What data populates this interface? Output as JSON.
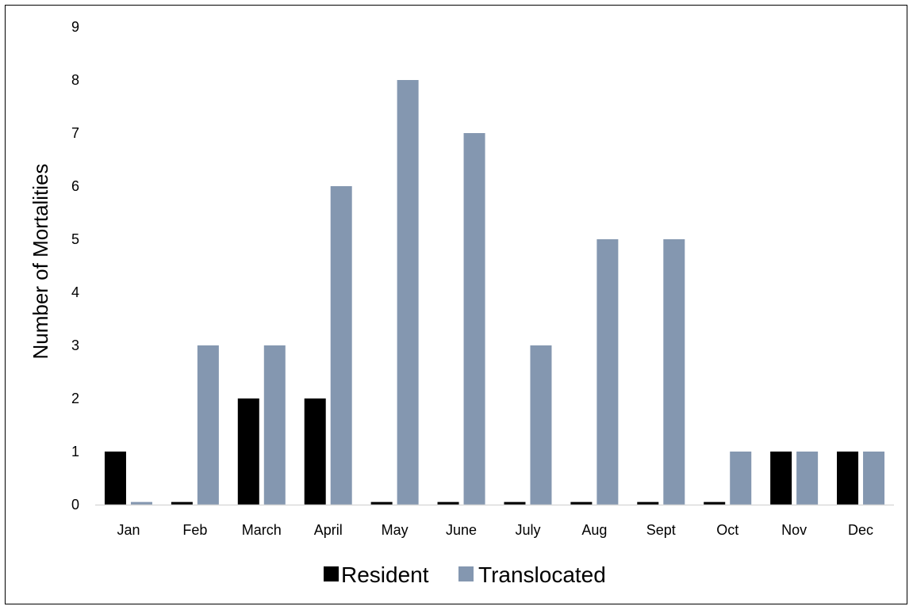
{
  "chart_data": {
    "type": "bar",
    "categories": [
      "Jan",
      "Feb",
      "March",
      "April",
      "May",
      "June",
      "July",
      "Aug",
      "Sept",
      "Oct",
      "Nov",
      "Dec"
    ],
    "series": [
      {
        "name": "Resident",
        "values": [
          1,
          0.05,
          2,
          2,
          0.05,
          0.05,
          0.05,
          0.05,
          0.05,
          0.05,
          1,
          1
        ]
      },
      {
        "name": "Translocated",
        "values": [
          0.05,
          3,
          3,
          6,
          8,
          7,
          3,
          5,
          5,
          1,
          1,
          1
        ]
      }
    ],
    "title": "",
    "xlabel": "",
    "ylabel": "Number of Mortalities",
    "ylim": [
      0,
      9
    ],
    "yticks": [
      "0",
      "1",
      "2",
      "3",
      "4",
      "5",
      "6",
      "7",
      "8",
      "9"
    ],
    "grid": false,
    "legend": "bottom",
    "colors": {
      "Resident": "#000000",
      "Translocated": "#8497b0",
      "axis": "#d9d9d9"
    }
  }
}
